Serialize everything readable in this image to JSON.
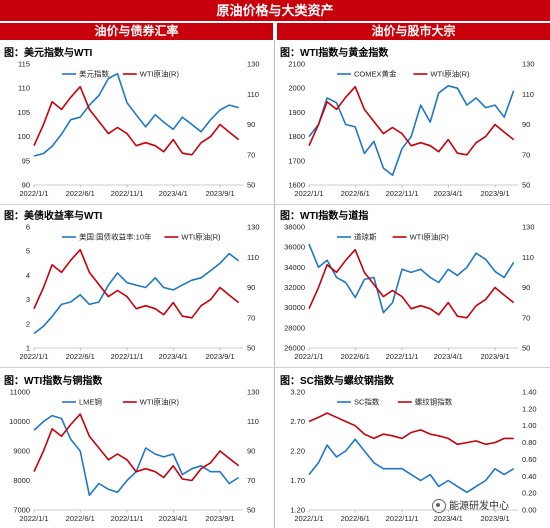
{
  "page": {
    "title": "原油价格与大类资产",
    "section_left": "油价与债券汇率",
    "section_right": "油价与股市大宗",
    "watermark": "能源研发中心"
  },
  "colors": {
    "banner_red": "#c8000b",
    "series_blue": "#1f77c8",
    "series_red": "#c8000b"
  },
  "chart_data": [
    {
      "type": "line",
      "title": "图：美元指数与WTI",
      "x_ticks": [
        "2022/1/1",
        "2022/6/1",
        "2022/11/1",
        "2023/4/1",
        "2023/9/1"
      ],
      "y_left": {
        "ticks": [
          "90",
          "95",
          "100",
          "105",
          "110",
          "115"
        ],
        "range": [
          90,
          115
        ]
      },
      "y_right": {
        "ticks": [
          "50",
          "70",
          "90",
          "110",
          "130"
        ],
        "range": [
          50,
          130
        ]
      },
      "series": [
        {
          "name": "美元指数",
          "axis": "left",
          "color": "#1f77c8",
          "x": [
            "2022/1/1",
            "2022/2/1",
            "2022/3/1",
            "2022/4/1",
            "2022/5/1",
            "2022/6/1",
            "2022/7/1",
            "2022/8/1",
            "2022/9/1",
            "2022/10/1",
            "2022/11/1",
            "2022/12/1",
            "2023/1/1",
            "2023/2/1",
            "2023/3/1",
            "2023/4/1",
            "2023/5/1",
            "2023/6/1",
            "2023/7/1",
            "2023/8/1",
            "2023/9/1",
            "2023/10/1",
            "2023/11/1"
          ],
          "values": [
            96,
            96.5,
            98,
            100.5,
            103.5,
            104,
            106.5,
            108.5,
            112,
            113,
            107,
            104.5,
            102,
            104.5,
            103,
            101.5,
            104,
            102.5,
            101,
            103.5,
            105.5,
            106.5,
            106
          ]
        },
        {
          "name": "WTI原油(R)",
          "axis": "right",
          "color": "#c8000b",
          "x": [
            "2022/1/1",
            "2022/2/1",
            "2022/3/1",
            "2022/4/1",
            "2022/5/1",
            "2022/6/1",
            "2022/7/1",
            "2022/8/1",
            "2022/9/1",
            "2022/10/1",
            "2022/11/1",
            "2022/12/1",
            "2023/1/1",
            "2023/2/1",
            "2023/3/1",
            "2023/4/1",
            "2023/5/1",
            "2023/6/1",
            "2023/7/1",
            "2023/8/1",
            "2023/9/1",
            "2023/10/1",
            "2023/11/1"
          ],
          "values": [
            76,
            90,
            105,
            100,
            108,
            115,
            100,
            92,
            84,
            88,
            84,
            76,
            78,
            76,
            72,
            80,
            71,
            70,
            78,
            82,
            90,
            85,
            80
          ]
        }
      ]
    },
    {
      "type": "line",
      "title": "图：WTI指数与黄金指数",
      "x_ticks": [
        "2022/1/1",
        "2022/6/1",
        "2022/11/1",
        "2023/4/1",
        "2023/9/1"
      ],
      "y_left": {
        "ticks": [
          "1600",
          "1700",
          "1800",
          "1900",
          "2000",
          "2100"
        ],
        "range": [
          1600,
          2100
        ]
      },
      "y_right": {
        "ticks": [
          "50",
          "70",
          "90",
          "110",
          "130"
        ],
        "range": [
          50,
          130
        ]
      },
      "series": [
        {
          "name": "COMEX黄金",
          "axis": "left",
          "color": "#1f77c8",
          "x": [
            "2022/1/1",
            "2022/2/1",
            "2022/3/1",
            "2022/4/1",
            "2022/5/1",
            "2022/6/1",
            "2022/7/1",
            "2022/8/1",
            "2022/9/1",
            "2022/10/1",
            "2022/11/1",
            "2022/12/1",
            "2023/1/1",
            "2023/2/1",
            "2023/3/1",
            "2023/4/1",
            "2023/5/1",
            "2023/6/1",
            "2023/7/1",
            "2023/8/1",
            "2023/9/1",
            "2023/10/1",
            "2023/11/1"
          ],
          "values": [
            1800,
            1850,
            1960,
            1940,
            1850,
            1840,
            1730,
            1780,
            1670,
            1640,
            1750,
            1800,
            1930,
            1860,
            1980,
            2010,
            2000,
            1930,
            1960,
            1920,
            1930,
            1880,
            1990
          ]
        },
        {
          "name": "WTI原油(R)",
          "axis": "right",
          "color": "#c8000b",
          "x": [
            "2022/1/1",
            "2022/2/1",
            "2022/3/1",
            "2022/4/1",
            "2022/5/1",
            "2022/6/1",
            "2022/7/1",
            "2022/8/1",
            "2022/9/1",
            "2022/10/1",
            "2022/11/1",
            "2022/12/1",
            "2023/1/1",
            "2023/2/1",
            "2023/3/1",
            "2023/4/1",
            "2023/5/1",
            "2023/6/1",
            "2023/7/1",
            "2023/8/1",
            "2023/9/1",
            "2023/10/1",
            "2023/11/1"
          ],
          "values": [
            76,
            90,
            105,
            100,
            108,
            115,
            100,
            92,
            84,
            88,
            84,
            76,
            78,
            76,
            72,
            80,
            71,
            70,
            78,
            82,
            90,
            85,
            80
          ]
        }
      ]
    },
    {
      "type": "line",
      "title": "图：美债收益率与WTI",
      "x_ticks": [
        "2022/1/1",
        "2022/6/1",
        "2022/11/1",
        "2023/4/1",
        "2023/9/1"
      ],
      "y_left": {
        "ticks": [
          "1",
          "2",
          "3",
          "4",
          "5",
          "6"
        ],
        "range": [
          1,
          6
        ]
      },
      "y_right": {
        "ticks": [
          "50",
          "70",
          "90",
          "110",
          "130"
        ],
        "range": [
          50,
          130
        ]
      },
      "series": [
        {
          "name": "美国:国债收益率:10年",
          "axis": "left",
          "color": "#1f77c8",
          "x": [
            "2022/1/1",
            "2022/2/1",
            "2022/3/1",
            "2022/4/1",
            "2022/5/1",
            "2022/6/1",
            "2022/7/1",
            "2022/8/1",
            "2022/9/1",
            "2022/10/1",
            "2022/11/1",
            "2022/12/1",
            "2023/1/1",
            "2023/2/1",
            "2023/3/1",
            "2023/4/1",
            "2023/5/1",
            "2023/6/1",
            "2023/7/1",
            "2023/8/1",
            "2023/9/1",
            "2023/10/1",
            "2023/11/1"
          ],
          "values": [
            1.6,
            1.9,
            2.3,
            2.8,
            2.9,
            3.2,
            2.8,
            2.9,
            3.6,
            4.1,
            3.7,
            3.6,
            3.5,
            3.9,
            3.5,
            3.4,
            3.6,
            3.8,
            3.9,
            4.2,
            4.5,
            4.9,
            4.6
          ]
        },
        {
          "name": "WTI原油(R)",
          "axis": "right",
          "color": "#c8000b",
          "x": [
            "2022/1/1",
            "2022/2/1",
            "2022/3/1",
            "2022/4/1",
            "2022/5/1",
            "2022/6/1",
            "2022/7/1",
            "2022/8/1",
            "2022/9/1",
            "2022/10/1",
            "2022/11/1",
            "2022/12/1",
            "2023/1/1",
            "2023/2/1",
            "2023/3/1",
            "2023/4/1",
            "2023/5/1",
            "2023/6/1",
            "2023/7/1",
            "2023/8/1",
            "2023/9/1",
            "2023/10/1",
            "2023/11/1"
          ],
          "values": [
            76,
            90,
            105,
            100,
            108,
            115,
            100,
            92,
            84,
            88,
            84,
            76,
            78,
            76,
            72,
            80,
            71,
            70,
            78,
            82,
            90,
            85,
            80
          ]
        }
      ]
    },
    {
      "type": "line",
      "title": "图：WTI指数与道指",
      "x_ticks": [
        "2022/1/1",
        "2022/6/1",
        "2022/11/1",
        "2023/4/1",
        "2023/9/1"
      ],
      "y_left": {
        "ticks": [
          "26000",
          "28000",
          "30000",
          "32000",
          "34000",
          "36000",
          "38000"
        ],
        "range": [
          26000,
          38000
        ]
      },
      "y_right": {
        "ticks": [
          "50",
          "70",
          "90",
          "110",
          "130"
        ],
        "range": [
          50,
          130
        ]
      },
      "series": [
        {
          "name": "道琼斯",
          "axis": "left",
          "color": "#1f77c8",
          "x": [
            "2022/1/1",
            "2022/2/1",
            "2022/3/1",
            "2022/4/1",
            "2022/5/1",
            "2022/6/1",
            "2022/7/1",
            "2022/8/1",
            "2022/9/1",
            "2022/10/1",
            "2022/11/1",
            "2022/12/1",
            "2023/1/1",
            "2023/2/1",
            "2023/3/1",
            "2023/4/1",
            "2023/5/1",
            "2023/6/1",
            "2023/7/1",
            "2023/8/1",
            "2023/9/1",
            "2023/10/1",
            "2023/11/1"
          ],
          "values": [
            36300,
            34000,
            34700,
            33000,
            32500,
            31000,
            32800,
            33000,
            29500,
            30500,
            33800,
            33500,
            33800,
            33000,
            32500,
            33800,
            33200,
            34000,
            35400,
            34800,
            33600,
            33000,
            34500
          ]
        },
        {
          "name": "WTI原油(R)",
          "axis": "right",
          "color": "#c8000b",
          "x": [
            "2022/1/1",
            "2022/2/1",
            "2022/3/1",
            "2022/4/1",
            "2022/5/1",
            "2022/6/1",
            "2022/7/1",
            "2022/8/1",
            "2022/9/1",
            "2022/10/1",
            "2022/11/1",
            "2022/12/1",
            "2023/1/1",
            "2023/2/1",
            "2023/3/1",
            "2023/4/1",
            "2023/5/1",
            "2023/6/1",
            "2023/7/1",
            "2023/8/1",
            "2023/9/1",
            "2023/10/1",
            "2023/11/1"
          ],
          "values": [
            76,
            90,
            105,
            100,
            108,
            115,
            100,
            92,
            84,
            88,
            84,
            76,
            78,
            76,
            72,
            80,
            71,
            70,
            78,
            82,
            90,
            85,
            80
          ]
        }
      ]
    },
    {
      "type": "line",
      "title": "图：WTI指数与铜指数",
      "x_ticks": [
        "2022/1/1",
        "2022/6/1",
        "2022/11/1",
        "2023/4/1",
        "2023/9/1"
      ],
      "y_left": {
        "ticks": [
          "7000",
          "8000",
          "9000",
          "10000",
          "11000"
        ],
        "range": [
          7000,
          11000
        ]
      },
      "y_right": {
        "ticks": [
          "50",
          "70",
          "90",
          "110",
          "130"
        ],
        "range": [
          50,
          130
        ]
      },
      "series": [
        {
          "name": "LME铜",
          "axis": "left",
          "color": "#1f77c8",
          "x": [
            "2022/1/1",
            "2022/2/1",
            "2022/3/1",
            "2022/4/1",
            "2022/5/1",
            "2022/6/1",
            "2022/7/1",
            "2022/8/1",
            "2022/9/1",
            "2022/10/1",
            "2022/11/1",
            "2022/12/1",
            "2023/1/1",
            "2023/2/1",
            "2023/3/1",
            "2023/4/1",
            "2023/5/1",
            "2023/6/1",
            "2023/7/1",
            "2023/8/1",
            "2023/9/1",
            "2023/10/1",
            "2023/11/1"
          ],
          "values": [
            9700,
            10000,
            10200,
            10100,
            9400,
            9000,
            7500,
            7900,
            7700,
            7600,
            8000,
            8300,
            9100,
            8900,
            8800,
            8900,
            8200,
            8400,
            8500,
            8300,
            8300,
            7900,
            8100
          ]
        },
        {
          "name": "WTI原油(R)",
          "axis": "right",
          "color": "#c8000b",
          "x": [
            "2022/1/1",
            "2022/2/1",
            "2022/3/1",
            "2022/4/1",
            "2022/5/1",
            "2022/6/1",
            "2022/7/1",
            "2022/8/1",
            "2022/9/1",
            "2022/10/1",
            "2022/11/1",
            "2022/12/1",
            "2023/1/1",
            "2023/2/1",
            "2023/3/1",
            "2023/4/1",
            "2023/5/1",
            "2023/6/1",
            "2023/7/1",
            "2023/8/1",
            "2023/9/1",
            "2023/10/1",
            "2023/11/1"
          ],
          "values": [
            76,
            90,
            105,
            100,
            108,
            115,
            100,
            92,
            84,
            88,
            84,
            76,
            78,
            76,
            72,
            80,
            71,
            70,
            78,
            82,
            90,
            85,
            80
          ]
        }
      ]
    },
    {
      "type": "line",
      "title": "图：SC指数与螺纹钢指数",
      "x_ticks": [
        "2022/1/1",
        "2022/6/1",
        "2022/11/1",
        "2023/4/1",
        "2023/9/1"
      ],
      "y_left": {
        "ticks": [
          "1.20",
          "1.70",
          "2.20",
          "2.70",
          "3.20"
        ],
        "range": [
          1.2,
          3.2
        ]
      },
      "y_right": {
        "ticks": [
          "0.00",
          "0.20",
          "0.40",
          "0.60",
          "0.80",
          "1.00",
          "1.20",
          "1.40"
        ],
        "range": [
          0,
          1.4
        ]
      },
      "series": [
        {
          "name": "SC指数",
          "axis": "left",
          "color": "#1f77c8",
          "x": [
            "2022/1/1",
            "2022/2/1",
            "2022/3/1",
            "2022/4/1",
            "2022/5/1",
            "2022/6/1",
            "2022/7/1",
            "2022/8/1",
            "2022/9/1",
            "2022/10/1",
            "2022/11/1",
            "2022/12/1",
            "2023/1/1",
            "2023/2/1",
            "2023/3/1",
            "2023/4/1",
            "2023/5/1",
            "2023/6/1",
            "2023/7/1",
            "2023/8/1",
            "2023/9/1",
            "2023/10/1",
            "2023/11/1"
          ],
          "values": [
            1.8,
            2.0,
            2.3,
            2.1,
            2.2,
            2.4,
            2.2,
            2.0,
            1.9,
            1.9,
            1.9,
            1.8,
            1.7,
            1.8,
            1.6,
            1.7,
            1.6,
            1.5,
            1.6,
            1.7,
            1.9,
            1.8,
            1.9
          ]
        },
        {
          "name": "螺纹钢指数",
          "axis": "right",
          "color": "#c8000b",
          "x": [
            "2022/1/1",
            "2022/2/1",
            "2022/3/1",
            "2022/4/1",
            "2022/5/1",
            "2022/6/1",
            "2022/7/1",
            "2022/8/1",
            "2022/9/1",
            "2022/10/1",
            "2022/11/1",
            "2022/12/1",
            "2023/1/1",
            "2023/2/1",
            "2023/3/1",
            "2023/4/1",
            "2023/5/1",
            "2023/6/1",
            "2023/7/1",
            "2023/8/1",
            "2023/9/1",
            "2023/10/1",
            "2023/11/1"
          ],
          "values": [
            1.05,
            1.1,
            1.15,
            1.1,
            1.05,
            1.0,
            0.9,
            0.85,
            0.9,
            0.88,
            0.85,
            0.92,
            0.95,
            0.9,
            0.88,
            0.85,
            0.78,
            0.8,
            0.82,
            0.78,
            0.8,
            0.85,
            0.85
          ]
        }
      ]
    }
  ]
}
